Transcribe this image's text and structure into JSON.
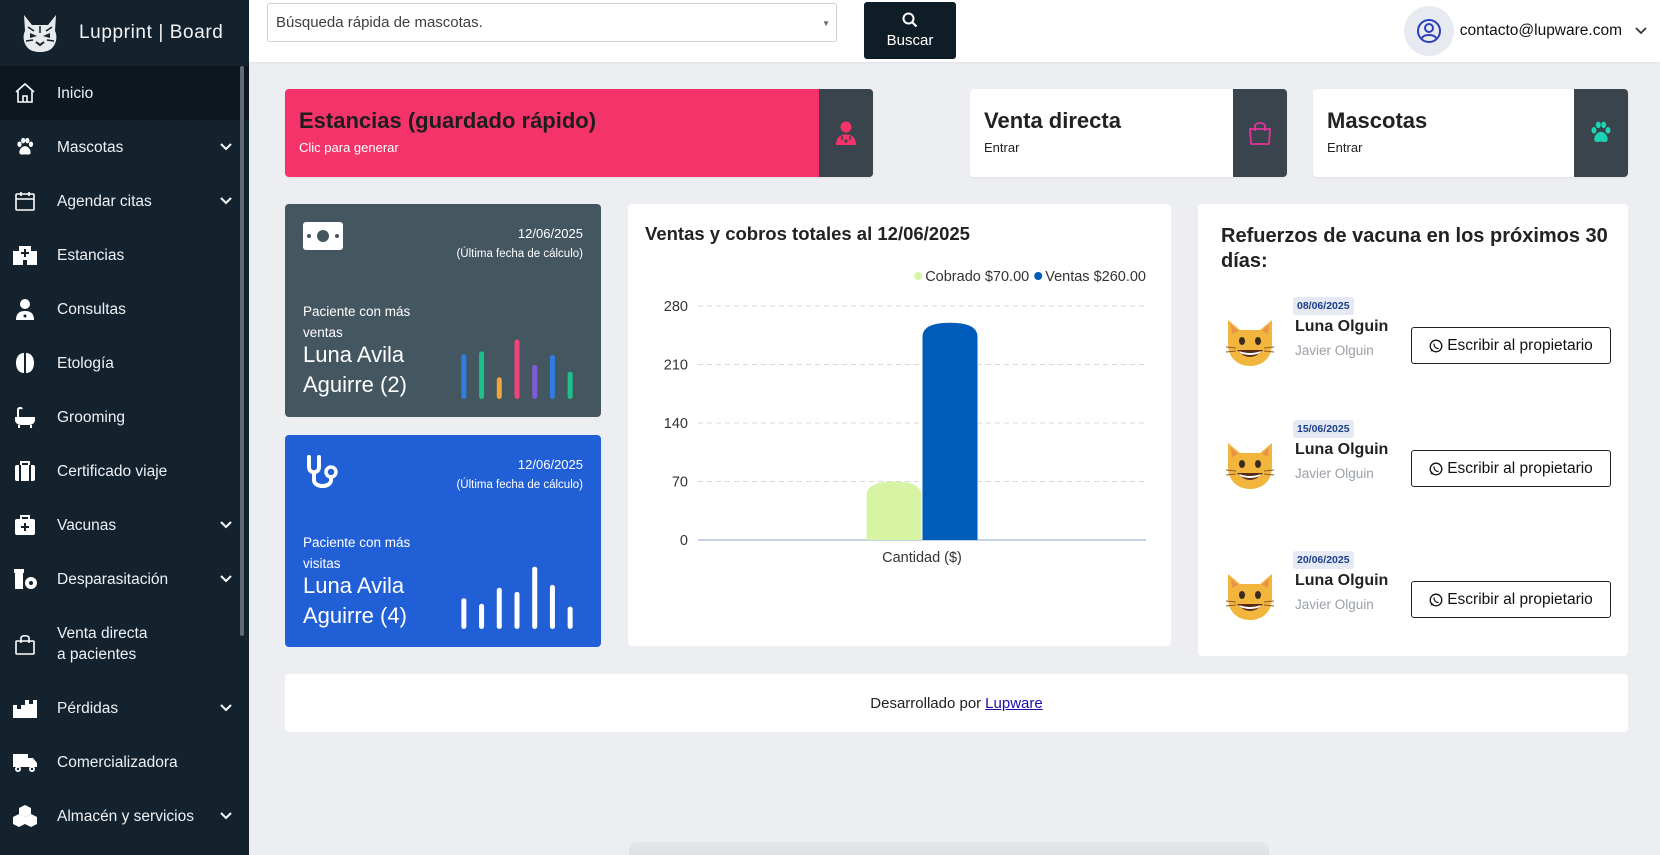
{
  "brand": {
    "name": "Lupprint | Board"
  },
  "search": {
    "placeholder": "Búsqueda rápida de mascotas.",
    "button_label": "Buscar"
  },
  "user": {
    "email": "contacto@lupware.com"
  },
  "sidebar": {
    "items": [
      {
        "label": "Inicio",
        "icon": "home-icon",
        "active": true,
        "has_submenu": false
      },
      {
        "label": "Mascotas",
        "icon": "paw-icon",
        "has_submenu": true
      },
      {
        "label": "Agendar citas",
        "icon": "calendar-icon",
        "has_submenu": true
      },
      {
        "label": "Estancias",
        "icon": "hospital-icon",
        "has_submenu": false
      },
      {
        "label": "Consultas",
        "icon": "doctor-icon",
        "has_submenu": false
      },
      {
        "label": "Etología",
        "icon": "brain-icon",
        "has_submenu": false
      },
      {
        "label": "Grooming",
        "icon": "bath-icon",
        "has_submenu": false
      },
      {
        "label": "Certificado viaje",
        "icon": "suitcase-icon",
        "has_submenu": false
      },
      {
        "label": "Vacunas",
        "icon": "medkit-icon",
        "has_submenu": true
      },
      {
        "label": "Desparasitación",
        "icon": "pills-icon",
        "has_submenu": true
      },
      {
        "label": "Venta directa a pacientes",
        "line1": "Venta directa",
        "line2": "a pacientes",
        "icon": "shopping-bag-icon",
        "has_submenu": false
      },
      {
        "label": "Pérdidas",
        "icon": "boxes-icon",
        "has_submenu": true
      },
      {
        "label": "Comercializadora",
        "icon": "truck-icon",
        "has_submenu": false
      },
      {
        "label": "Almacén y servicios",
        "icon": "cubes-icon",
        "has_submenu": true
      }
    ]
  },
  "quick_cards": [
    {
      "title": "Estancias (guardado rápido)",
      "subtitle": "Clic para generar",
      "icon": "doctor-icon"
    },
    {
      "title": "Venta directa",
      "subtitle": "Entrar",
      "icon": "shopping-bag-icon"
    },
    {
      "title": "Mascotas",
      "subtitle": "Entrar",
      "icon": "paw-icon"
    }
  ],
  "stat_cards": [
    {
      "icon": "money-icon",
      "date": "12/06/2025",
      "date_note": "(Última fecha de cálculo)",
      "label": "Paciente con más ventas",
      "name": "Luna Avila Aguirre (2)",
      "bar_levels": [
        0.64,
        0.68,
        0.31,
        0.85,
        0.49,
        0.63,
        0.39
      ],
      "bar_colors": [
        "#2f7de0",
        "#1ec08a",
        "#f0a53a",
        "#f0457a",
        "#7b5bd6",
        "#2f7de0",
        "#1ec08a"
      ]
    },
    {
      "icon": "stethoscope-icon",
      "date": "12/06/2025",
      "date_note": "(Última fecha de cálculo)",
      "label": "Paciente con más visitas",
      "name": "Luna Avila Aguirre (4)",
      "bar_levels": [
        0.44,
        0.36,
        0.59,
        0.53,
        0.89,
        0.63,
        0.32
      ],
      "bar_colors": [
        "#ffffff"
      ]
    }
  ],
  "chart_data": {
    "type": "bar",
    "title": "Ventas y cobros totales al 12/06/2025",
    "categories": [
      "Cantidad ($)"
    ],
    "series": [
      {
        "name": "Cobrado $70.00",
        "values": [
          70
        ],
        "color": "#d6f4a3"
      },
      {
        "name": "Ventas $260.00",
        "values": [
          260
        ],
        "color": "#005cb9"
      }
    ],
    "yticks": [
      0,
      70,
      140,
      210,
      280
    ],
    "ylim": [
      0,
      280
    ],
    "legend_position": "top-right",
    "grid": true
  },
  "vaccines": {
    "title": "Refuerzos de vacuna en los próximos 30 días:",
    "button_label": "Escribir al propietario",
    "items": [
      {
        "date": "08/06/2025",
        "pet": "Luna Olguin",
        "owner": "Javier Olguin"
      },
      {
        "date": "15/06/2025",
        "pet": "Luna Olguin",
        "owner": "Javier Olguin"
      },
      {
        "date": "20/06/2025",
        "pet": "Luna Olguin",
        "owner": "Javier Olguin"
      }
    ]
  },
  "footer": {
    "text": "Desarrollado por",
    "link": "Lupware"
  }
}
